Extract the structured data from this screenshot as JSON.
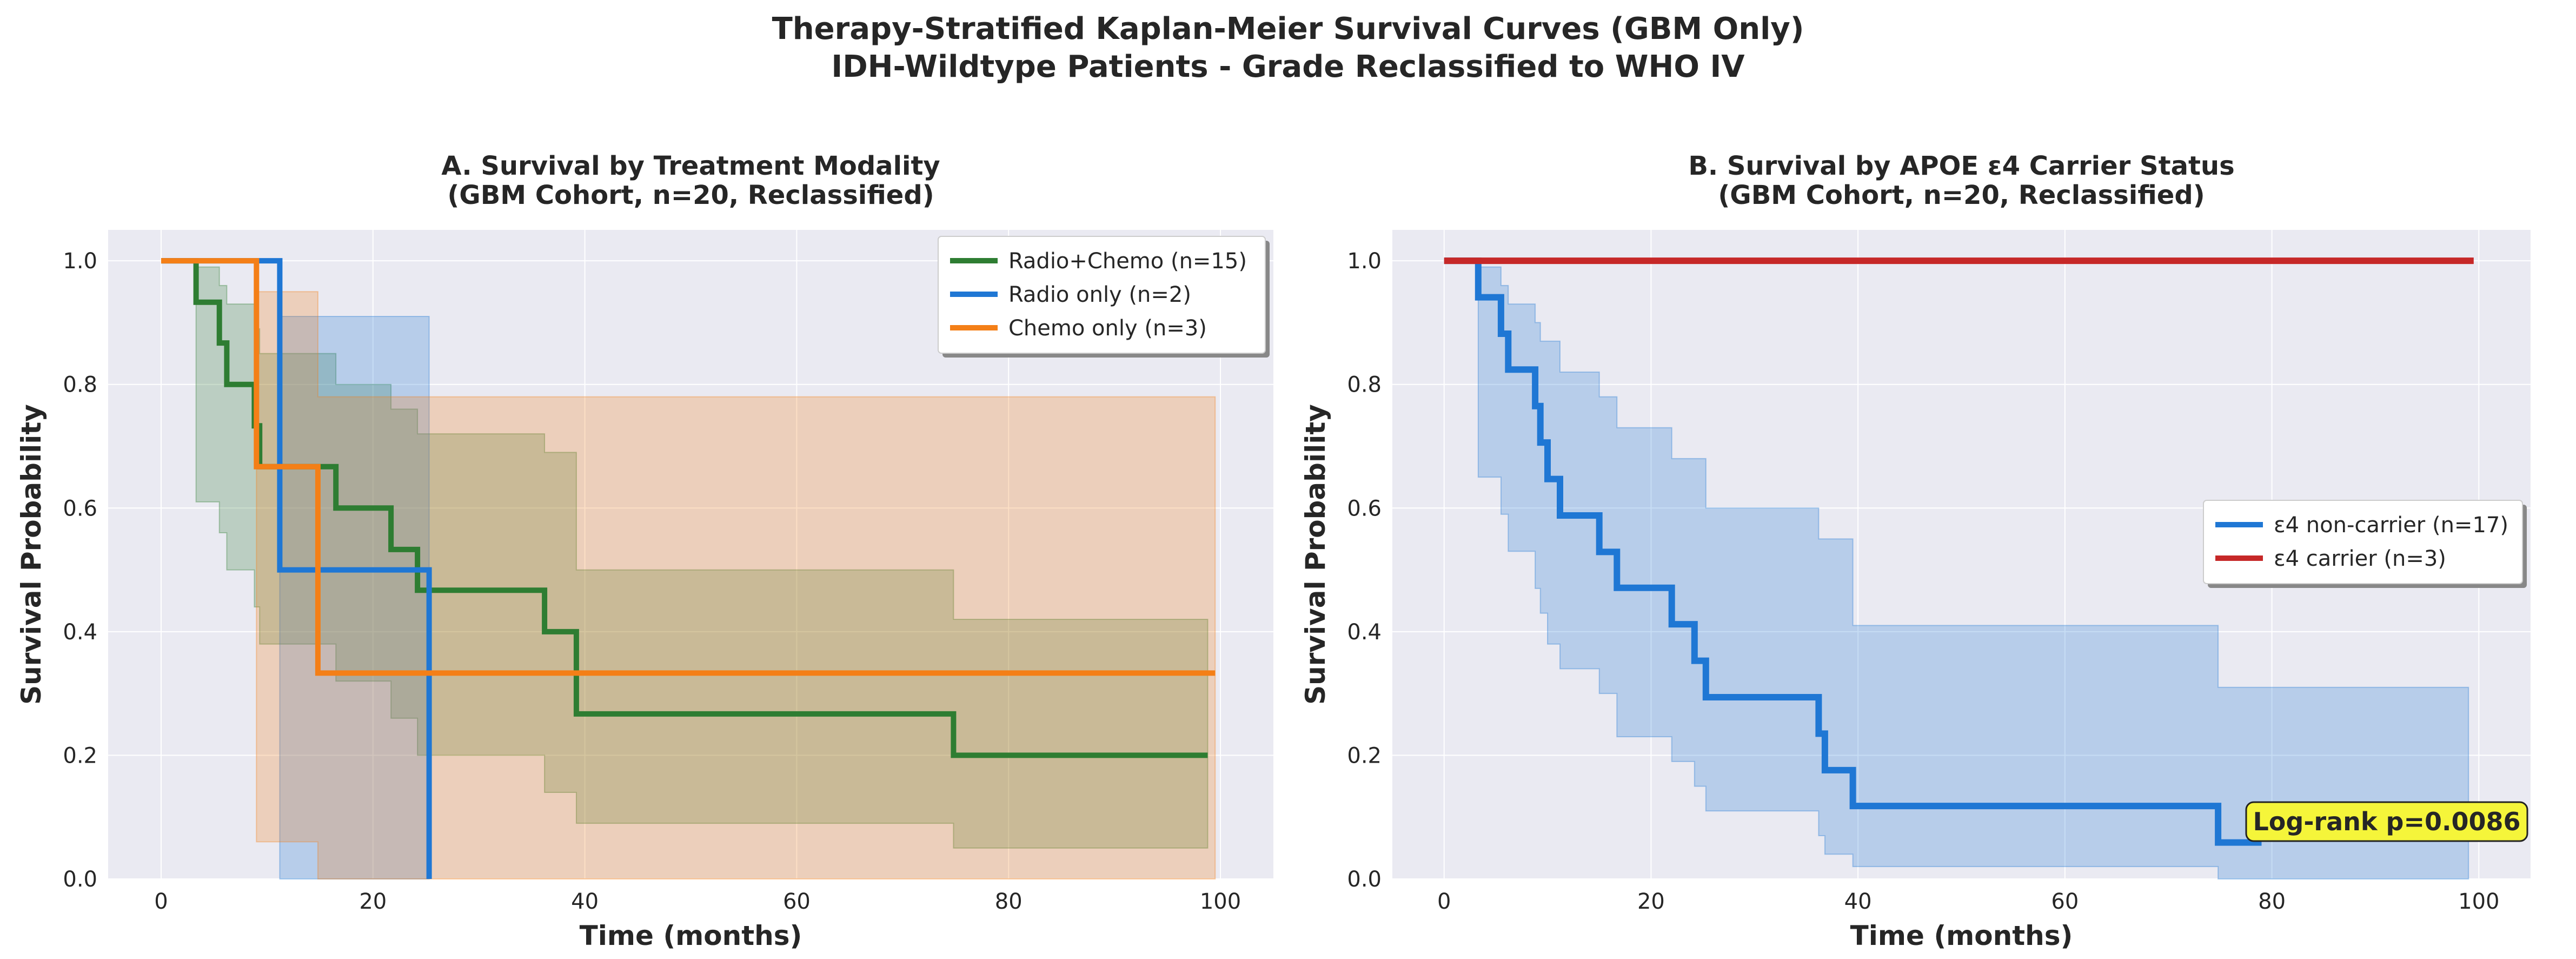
{
  "figure": {
    "title_line1": "Therapy-Stratified Kaplan-Meier Survival Curves (GBM Only)",
    "title_line2": "IDH-Wildtype Patients - Grade Reclassified to WHO IV"
  },
  "chart_data": [
    {
      "type": "line",
      "subtype": "kaplan-meier step with confidence bands",
      "title_line1": "A. Survival by Treatment Modality",
      "title_line2": "(GBM Cohort, n=20, Reclassified)",
      "xlabel": "Time (months)",
      "ylabel": "Survival Probability",
      "xlim": [
        -5,
        105
      ],
      "ylim": [
        0.0,
        1.05
      ],
      "xticks": [
        0,
        20,
        40,
        60,
        80,
        100
      ],
      "yticks": [
        0.0,
        0.2,
        0.4,
        0.6,
        0.8,
        1.0
      ],
      "grid": true,
      "legend_position": "top-right",
      "series": [
        {
          "name": "Radio+Chemo (n=15)",
          "color": "#2e7d32",
          "steps": [
            [
              0,
              1.0
            ],
            [
              3.3,
              0.933
            ],
            [
              5.5,
              0.867
            ],
            [
              6.2,
              0.8
            ],
            [
              8.8,
              0.733
            ],
            [
              9.3,
              0.667
            ],
            [
              16.5,
              0.6
            ],
            [
              21.7,
              0.533
            ],
            [
              24.2,
              0.467
            ],
            [
              36.2,
              0.4
            ],
            [
              39.2,
              0.267
            ],
            [
              74.8,
              0.2
            ],
            [
              98.8,
              0.2
            ]
          ],
          "ci_lower": [
            [
              0,
              1.0
            ],
            [
              3.3,
              0.61
            ],
            [
              5.5,
              0.56
            ],
            [
              6.2,
              0.5
            ],
            [
              8.8,
              0.44
            ],
            [
              9.3,
              0.38
            ],
            [
              16.5,
              0.32
            ],
            [
              21.7,
              0.26
            ],
            [
              24.2,
              0.2
            ],
            [
              36.2,
              0.14
            ],
            [
              39.2,
              0.09
            ],
            [
              74.8,
              0.05
            ],
            [
              98.8,
              0.05
            ]
          ],
          "ci_upper": [
            [
              0,
              1.0
            ],
            [
              3.3,
              0.99
            ],
            [
              5.5,
              0.96
            ],
            [
              6.2,
              0.93
            ],
            [
              8.8,
              0.89
            ],
            [
              9.3,
              0.85
            ],
            [
              16.5,
              0.8
            ],
            [
              21.7,
              0.76
            ],
            [
              24.2,
              0.72
            ],
            [
              36.2,
              0.69
            ],
            [
              36.2,
              0.69
            ],
            [
              39.2,
              0.5
            ],
            [
              74.8,
              0.42
            ],
            [
              98.8,
              0.42
            ]
          ]
        },
        {
          "name": "Radio only (n=2)",
          "color": "#1f77d4",
          "steps": [
            [
              0,
              1.0
            ],
            [
              11.2,
              0.5
            ],
            [
              25.3,
              0.0
            ]
          ],
          "ci_lower": [
            [
              0,
              1.0
            ],
            [
              11.2,
              0.0
            ],
            [
              25.3,
              0.0
            ]
          ],
          "ci_upper": [
            [
              0,
              1.0
            ],
            [
              11.2,
              0.91
            ],
            [
              25.3,
              0.91
            ]
          ]
        },
        {
          "name": "Chemo only (n=3)",
          "color": "#f47f17",
          "steps": [
            [
              0,
              1.0
            ],
            [
              9.0,
              0.667
            ],
            [
              14.8,
              0.333
            ],
            [
              99.5,
              0.333
            ]
          ],
          "ci_lower": [
            [
              0,
              1.0
            ],
            [
              9.0,
              0.06
            ],
            [
              14.8,
              0.0
            ],
            [
              99.5,
              0.0
            ]
          ],
          "ci_upper": [
            [
              0,
              1.0
            ],
            [
              9.0,
              0.95
            ],
            [
              14.8,
              0.78
            ],
            [
              99.5,
              0.78
            ]
          ]
        }
      ]
    },
    {
      "type": "line",
      "subtype": "kaplan-meier step with confidence bands",
      "title_line1": "B. Survival by APOE ε4 Carrier Status",
      "title_line2": "(GBM Cohort, n=20, Reclassified)",
      "xlabel": "Time (months)",
      "ylabel": "Survival Probability",
      "xlim": [
        -5,
        105
      ],
      "ylim": [
        0.0,
        1.05
      ],
      "xticks": [
        0,
        20,
        40,
        60,
        80,
        100
      ],
      "yticks": [
        0.0,
        0.2,
        0.4,
        0.6,
        0.8,
        1.0
      ],
      "grid": true,
      "legend_position": "center-right",
      "annotation": "Log-rank p=0.0086",
      "annotation_color": "#f5f53a",
      "series": [
        {
          "name": "ε4 non-carrier (n=17)",
          "color": "#1f77d4",
          "steps": [
            [
              0,
              1.0
            ],
            [
              3.3,
              0.941
            ],
            [
              5.5,
              0.882
            ],
            [
              6.2,
              0.824
            ],
            [
              8.8,
              0.765
            ],
            [
              9.3,
              0.706
            ],
            [
              10.0,
              0.647
            ],
            [
              11.2,
              0.588
            ],
            [
              15.0,
              0.529
            ],
            [
              16.7,
              0.471
            ],
            [
              22.0,
              0.412
            ],
            [
              24.2,
              0.353
            ],
            [
              25.3,
              0.294
            ],
            [
              36.2,
              0.235
            ],
            [
              36.8,
              0.176
            ],
            [
              39.5,
              0.118
            ],
            [
              74.8,
              0.059
            ],
            [
              79.0,
              0.059
            ]
          ],
          "ci_lower": [
            [
              0,
              1.0
            ],
            [
              3.3,
              0.65
            ],
            [
              5.5,
              0.59
            ],
            [
              6.2,
              0.53
            ],
            [
              8.8,
              0.47
            ],
            [
              9.3,
              0.43
            ],
            [
              10.0,
              0.38
            ],
            [
              11.2,
              0.34
            ],
            [
              15.0,
              0.3
            ],
            [
              16.7,
              0.23
            ],
            [
              22.0,
              0.19
            ],
            [
              24.2,
              0.15
            ],
            [
              25.3,
              0.11
            ],
            [
              36.2,
              0.07
            ],
            [
              36.8,
              0.04
            ],
            [
              39.5,
              0.02
            ],
            [
              74.8,
              0.0
            ],
            [
              99.0,
              0.0
            ]
          ],
          "ci_upper": [
            [
              0,
              1.0
            ],
            [
              3.3,
              0.99
            ],
            [
              5.5,
              0.96
            ],
            [
              6.2,
              0.93
            ],
            [
              8.8,
              0.9
            ],
            [
              9.3,
              0.87
            ],
            [
              11.2,
              0.82
            ],
            [
              15.0,
              0.78
            ],
            [
              16.7,
              0.73
            ],
            [
              22.0,
              0.68
            ],
            [
              25.3,
              0.6
            ],
            [
              36.2,
              0.55
            ],
            [
              39.5,
              0.41
            ],
            [
              74.8,
              0.31
            ],
            [
              99.0,
              0.24
            ]
          ]
        },
        {
          "name": "ε4 carrier (n=3)",
          "color": "#c62828",
          "steps": [
            [
              0,
              1.0
            ],
            [
              99.5,
              1.0
            ]
          ]
        }
      ]
    }
  ]
}
